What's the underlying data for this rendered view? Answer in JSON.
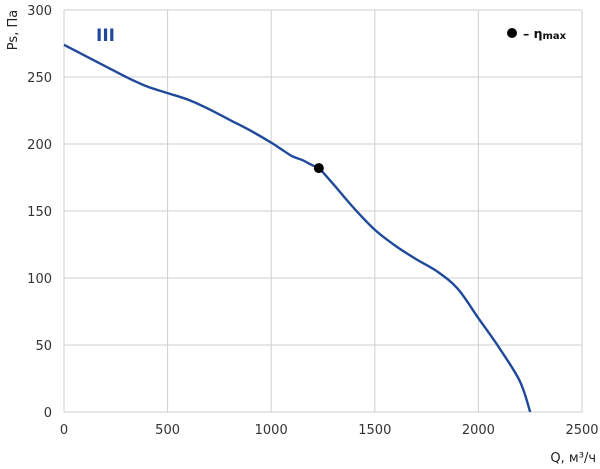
{
  "chart_data": {
    "type": "line",
    "xlabel": "Q, м³/ч",
    "ylabel": "Ps, Па",
    "xlim": [
      0,
      2500
    ],
    "ylim": [
      0,
      300
    ],
    "x_ticks": [
      0,
      500,
      1000,
      1500,
      2000,
      2500
    ],
    "y_ticks": [
      0,
      50,
      100,
      150,
      200,
      250,
      300
    ],
    "grid": true,
    "series": [
      {
        "name": "III",
        "color": "#1f4a9a",
        "points": [
          [
            0,
            274
          ],
          [
            100,
            266
          ],
          [
            200,
            258
          ],
          [
            300,
            250
          ],
          [
            400,
            243
          ],
          [
            500,
            238
          ],
          [
            600,
            233
          ],
          [
            700,
            226
          ],
          [
            800,
            218
          ],
          [
            900,
            210
          ],
          [
            1000,
            201
          ],
          [
            1050,
            196
          ],
          [
            1100,
            191
          ],
          [
            1150,
            188
          ],
          [
            1200,
            184
          ],
          [
            1230,
            182
          ],
          [
            1300,
            170
          ],
          [
            1400,
            152
          ],
          [
            1500,
            136
          ],
          [
            1600,
            124
          ],
          [
            1700,
            114
          ],
          [
            1800,
            105
          ],
          [
            1900,
            92
          ],
          [
            2000,
            70
          ],
          [
            2100,
            48
          ],
          [
            2200,
            23
          ],
          [
            2250,
            0
          ]
        ]
      }
    ],
    "eta_max_point": {
      "x": 1230,
      "y": 182,
      "color": "#000000"
    },
    "legend": {
      "marker_label": "– η",
      "marker_sub": "max",
      "position": "top-right"
    },
    "curve_label": {
      "text": "III",
      "color": "#1f4a9a",
      "position": "top-left"
    }
  }
}
